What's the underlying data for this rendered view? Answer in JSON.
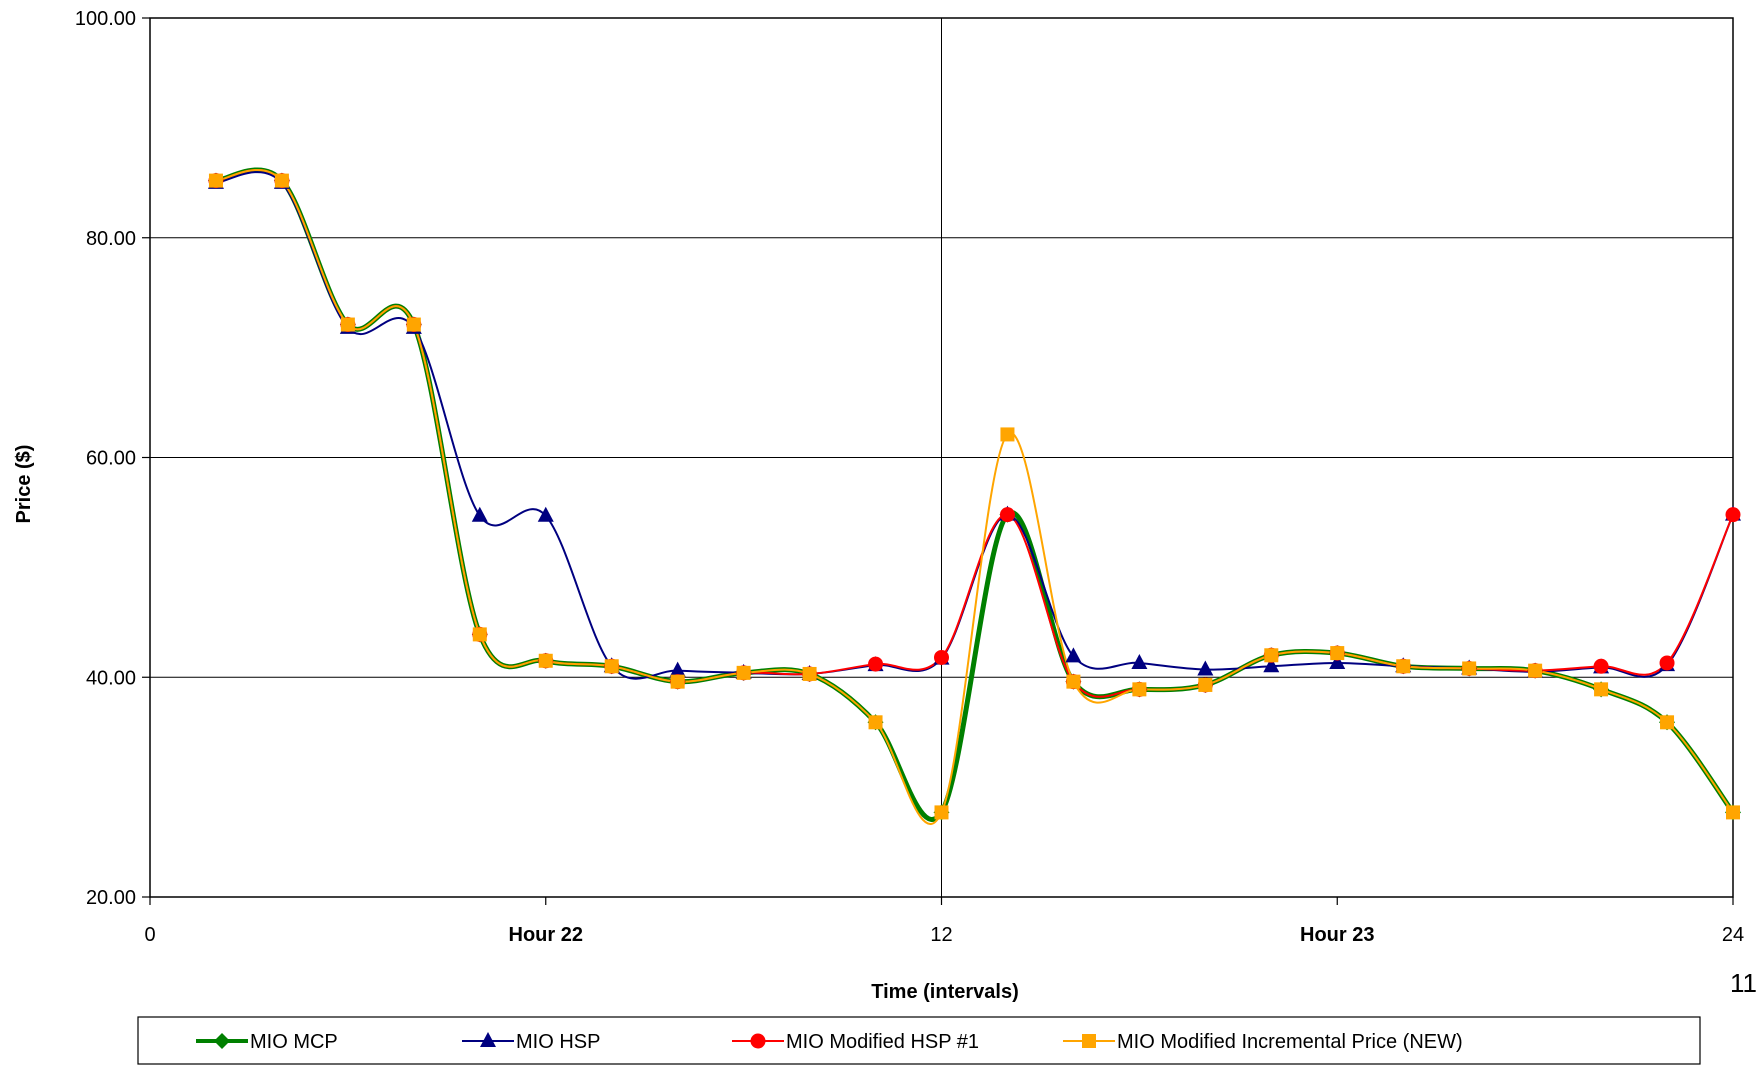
{
  "page_number": "11",
  "chart_data": {
    "type": "line",
    "title": "",
    "xlabel": "Time (intervals)",
    "ylabel": "Price ($)",
    "xlim": [
      0,
      24
    ],
    "ylim": [
      20,
      100
    ],
    "y_ticks": [
      "20.00",
      "40.00",
      "60.00",
      "80.00",
      "100.00"
    ],
    "x_ticks": [
      {
        "value": 0,
        "label": "0",
        "bold": false
      },
      {
        "value": 6,
        "label": "Hour 22",
        "bold": true
      },
      {
        "value": 12,
        "label": "12",
        "bold": false
      },
      {
        "value": 18,
        "label": "Hour 23",
        "bold": true
      },
      {
        "value": 24,
        "label": "24",
        "bold": false
      }
    ],
    "grid": true,
    "legend_position": "bottom",
    "x": [
      1,
      2,
      3,
      4,
      5,
      6,
      7,
      8,
      9,
      10,
      11,
      12,
      13,
      14,
      15,
      16,
      17,
      18,
      19,
      20,
      21,
      22,
      23,
      24
    ],
    "series": [
      {
        "name": "MIO MCP",
        "color": "#008000",
        "marker": "diamond",
        "values": [
          85.2,
          85.2,
          72.1,
          72.1,
          43.9,
          41.5,
          41.0,
          39.6,
          40.4,
          40.3,
          35.9,
          27.7,
          54.8,
          39.6,
          38.9,
          39.3,
          42.0,
          42.2,
          41.0,
          40.8,
          40.6,
          38.9,
          35.9,
          27.7
        ]
      },
      {
        "name": "MIO HSP",
        "color": "#000080",
        "marker": "triangle",
        "values": [
          85.0,
          85.0,
          71.8,
          71.8,
          54.7,
          54.7,
          41.0,
          40.6,
          40.4,
          40.3,
          41.1,
          41.7,
          54.8,
          41.9,
          41.3,
          40.7,
          41.0,
          41.3,
          41.0,
          40.8,
          40.5,
          40.9,
          41.1,
          54.8
        ]
      },
      {
        "name": "MIO Modified HSP #1",
        "color": "#ff0000",
        "marker": "circle",
        "values": [
          85.2,
          85.2,
          72.1,
          72.1,
          43.9,
          41.5,
          41.0,
          39.6,
          40.4,
          40.3,
          41.2,
          41.8,
          54.8,
          39.6,
          38.9,
          39.3,
          42.0,
          42.2,
          41.0,
          40.8,
          40.6,
          41.0,
          41.3,
          54.8
        ]
      },
      {
        "name": "MIO Modified Incremental Price (NEW)",
        "color": "#ffa500",
        "marker": "square",
        "values": [
          85.2,
          85.2,
          72.1,
          72.1,
          43.9,
          41.5,
          41.0,
          39.6,
          40.4,
          40.3,
          35.9,
          27.7,
          62.1,
          39.6,
          38.9,
          39.3,
          42.0,
          42.2,
          41.0,
          40.8,
          40.6,
          38.9,
          35.9,
          27.7
        ]
      }
    ]
  }
}
